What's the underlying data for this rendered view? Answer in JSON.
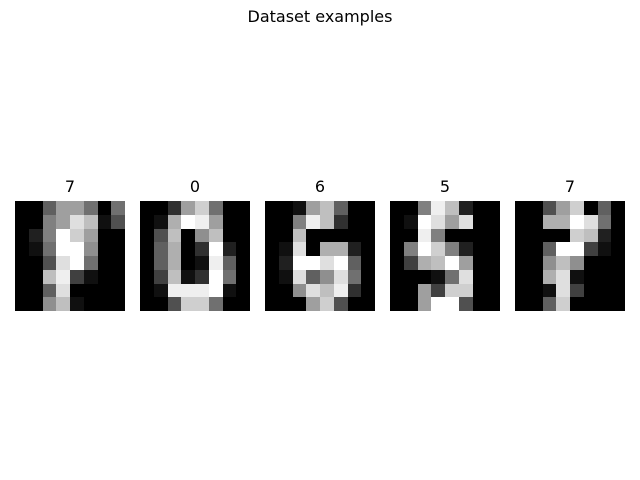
{
  "figure": {
    "title": "Dataset examples"
  },
  "panels": [
    {
      "label": "7",
      "pixels": [
        [
          0,
          0,
          6,
          10,
          10,
          7,
          0,
          7
        ],
        [
          0,
          0,
          8,
          10,
          14,
          12,
          1,
          5
        ],
        [
          0,
          2,
          8,
          16,
          13,
          10,
          0,
          0
        ],
        [
          0,
          1,
          7,
          16,
          16,
          9,
          0,
          0
        ],
        [
          0,
          0,
          5,
          14,
          16,
          7,
          0,
          0
        ],
        [
          0,
          0,
          12,
          15,
          4,
          1,
          0,
          0
        ],
        [
          0,
          0,
          6,
          14,
          0,
          0,
          0,
          0
        ],
        [
          0,
          0,
          9,
          12,
          1,
          0,
          0,
          0
        ]
      ]
    },
    {
      "label": "0",
      "pixels": [
        [
          0,
          0,
          3,
          10,
          13,
          7,
          0,
          0
        ],
        [
          0,
          1,
          11,
          16,
          15,
          10,
          0,
          0
        ],
        [
          0,
          5,
          12,
          0,
          9,
          12,
          0,
          0
        ],
        [
          0,
          6,
          11,
          0,
          3,
          16,
          2,
          0
        ],
        [
          0,
          6,
          11,
          0,
          1,
          15,
          6,
          0
        ],
        [
          0,
          4,
          12,
          1,
          3,
          16,
          7,
          0
        ],
        [
          0,
          1,
          15,
          15,
          15,
          16,
          1,
          0
        ],
        [
          0,
          0,
          5,
          13,
          13,
          7,
          0,
          0
        ]
      ]
    },
    {
      "label": "6",
      "pixels": [
        [
          0,
          0,
          1,
          10,
          12,
          6,
          0,
          0
        ],
        [
          0,
          0,
          8,
          15,
          12,
          3,
          0,
          0
        ],
        [
          0,
          0,
          12,
          0,
          0,
          0,
          0,
          0
        ],
        [
          0,
          1,
          14,
          0,
          11,
          11,
          2,
          0
        ],
        [
          0,
          2,
          16,
          16,
          14,
          16,
          6,
          0
        ],
        [
          0,
          1,
          14,
          6,
          9,
          14,
          7,
          0
        ],
        [
          0,
          0,
          9,
          14,
          12,
          15,
          3,
          0
        ],
        [
          0,
          0,
          0,
          10,
          13,
          5,
          0,
          0
        ]
      ]
    },
    {
      "label": "5",
      "pixels": [
        [
          0,
          0,
          8,
          15,
          12,
          2,
          0,
          0
        ],
        [
          0,
          1,
          16,
          14,
          10,
          14,
          0,
          0
        ],
        [
          0,
          0,
          15,
          8,
          0,
          0,
          0,
          0
        ],
        [
          0,
          8,
          16,
          13,
          8,
          2,
          0,
          0
        ],
        [
          0,
          4,
          11,
          12,
          16,
          10,
          0,
          0
        ],
        [
          0,
          0,
          0,
          1,
          7,
          14,
          0,
          0
        ],
        [
          0,
          0,
          10,
          4,
          13,
          13,
          0,
          0
        ],
        [
          0,
          0,
          10,
          16,
          16,
          5,
          0,
          0
        ]
      ]
    },
    {
      "label": "7",
      "pixels": [
        [
          0,
          0,
          5,
          10,
          13,
          0,
          6,
          0
        ],
        [
          0,
          0,
          11,
          11,
          16,
          14,
          7,
          0
        ],
        [
          0,
          0,
          0,
          0,
          13,
          12,
          2,
          0
        ],
        [
          0,
          0,
          6,
          16,
          16,
          4,
          1,
          0
        ],
        [
          0,
          0,
          9,
          12,
          9,
          0,
          0,
          0
        ],
        [
          0,
          0,
          11,
          14,
          1,
          0,
          0,
          0
        ],
        [
          0,
          0,
          1,
          14,
          4,
          0,
          0,
          0
        ],
        [
          0,
          0,
          6,
          13,
          0,
          0,
          0,
          0
        ]
      ]
    }
  ]
}
